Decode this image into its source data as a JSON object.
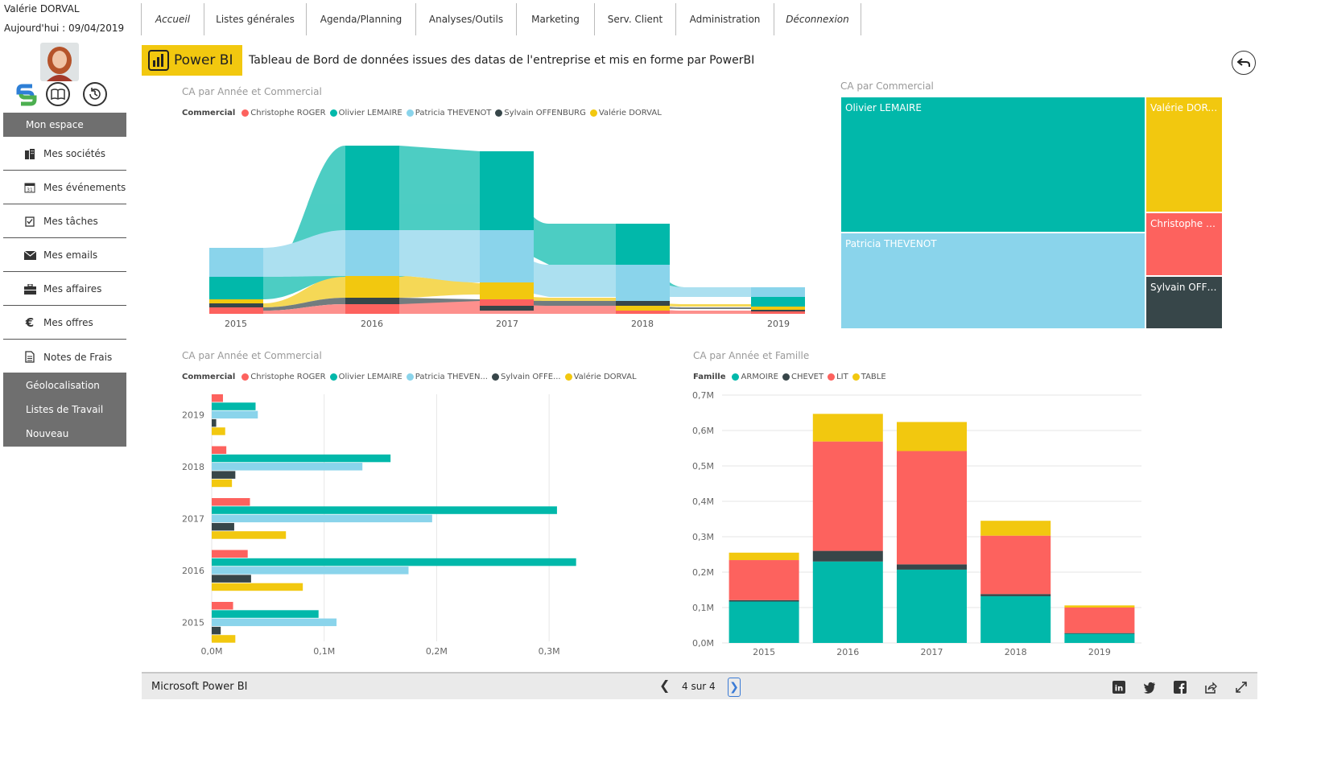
{
  "user": {
    "name": "Valérie DORVAL",
    "today": "Aujourd'hui : 09/04/2019"
  },
  "sidebar": {
    "header": "Mon espace",
    "items": [
      {
        "label": "Mes sociétés",
        "icon": "building-icon"
      },
      {
        "label": "Mes événements",
        "icon": "calendar-icon"
      },
      {
        "label": "Mes tâches",
        "icon": "task-icon"
      },
      {
        "label": "Mes emails",
        "icon": "envelope-icon"
      },
      {
        "label": "Mes affaires",
        "icon": "briefcase-icon"
      },
      {
        "label": "Mes offres",
        "icon": "euro-icon"
      },
      {
        "label": "Notes de Frais",
        "icon": "document-icon"
      }
    ],
    "gray_items": [
      "Géolocalisation",
      "Listes de Travail",
      "Nouveau"
    ]
  },
  "topmenu": [
    "Accueil",
    "Listes générales",
    "Agenda/Planning",
    "Analyses/Outils",
    "Marketing",
    "Serv. Client",
    "Administration",
    "Déconnexion"
  ],
  "header": {
    "badge": "Power BI",
    "title": "Tableau de Bord de données issues des datas de l'entreprise et mis en forme par PowerBI"
  },
  "colors": {
    "christophe": "#fd625e",
    "olivier": "#01b8aa",
    "patricia": "#8ad4eb",
    "sylvain": "#374649",
    "valerie": "#f2c80f",
    "brand": "#f2c80f"
  },
  "chart_data": [
    {
      "type": "area",
      "title": "CA par Année et Commercial",
      "legend_title": "Commercial",
      "legend": [
        "Christophe ROGER",
        "Olivier LEMAIRE",
        "Patricia THEVENOT",
        "Sylvain OFFENBURG",
        "Valérie DORVAL"
      ],
      "categories": [
        "2015",
        "2016",
        "2017",
        "2018",
        "2019"
      ]
    },
    {
      "type": "treemap",
      "title": "CA par Commercial",
      "cells": [
        "Olivier LEMAIRE",
        "Valérie DORV...",
        "Patricia THEVENOT",
        "Christophe R...",
        "Sylvain OFFE..."
      ]
    },
    {
      "type": "bar",
      "title": "CA par Année et Commercial",
      "legend_title": "Commercial",
      "legend": [
        "Christophe ROGER",
        "Olivier LEMAIRE",
        "Patricia THEVEN...",
        "Sylvain OFFE...",
        "Valérie DORVAL"
      ],
      "categories": [
        "2019",
        "2018",
        "2017",
        "2016",
        "2015"
      ],
      "xticks": [
        "0,0M",
        "0,1M",
        "0,2M",
        "0,3M"
      ],
      "xlim": [
        0,
        0.35
      ],
      "series": [
        {
          "name": "Christophe ROGER",
          "color": "#fd625e",
          "values": [
            0.01,
            0.013,
            0.034,
            0.032,
            0.019
          ]
        },
        {
          "name": "Olivier LEMAIRE",
          "color": "#01b8aa",
          "values": [
            0.039,
            0.159,
            0.307,
            0.324,
            0.095
          ]
        },
        {
          "name": "Patricia THEVENOT",
          "color": "#8ad4eb",
          "values": [
            0.041,
            0.134,
            0.196,
            0.175,
            0.111
          ]
        },
        {
          "name": "Sylvain OFFENBURG",
          "color": "#374649",
          "values": [
            0.004,
            0.021,
            0.02,
            0.035,
            0.008
          ]
        },
        {
          "name": "Valérie DORVAL",
          "color": "#f2c80f",
          "values": [
            0.012,
            0.018,
            0.066,
            0.081,
            0.021
          ]
        }
      ]
    },
    {
      "type": "bar",
      "stacked": true,
      "title": "CA par Année et Famille",
      "legend_title": "Famille",
      "legend": [
        "ARMOIRE",
        "CHEVET",
        "LIT",
        "TABLE"
      ],
      "categories": [
        "2015",
        "2016",
        "2017",
        "2018",
        "2019"
      ],
      "yticks": [
        "0,0M",
        "0,1M",
        "0,2M",
        "0,3M",
        "0,4M",
        "0,5M",
        "0,6M",
        "0,7M"
      ],
      "ylim": [
        0,
        0.7
      ],
      "series": [
        {
          "name": "ARMOIRE",
          "color": "#01b8aa",
          "values": [
            0.117,
            0.23,
            0.207,
            0.132,
            0.026
          ]
        },
        {
          "name": "CHEVET",
          "color": "#374649",
          "values": [
            0.004,
            0.03,
            0.015,
            0.006,
            0.002
          ]
        },
        {
          "name": "LIT",
          "color": "#fd625e",
          "values": [
            0.113,
            0.309,
            0.32,
            0.165,
            0.072
          ]
        },
        {
          "name": "TABLE",
          "color": "#f2c80f",
          "values": [
            0.021,
            0.078,
            0.082,
            0.042,
            0.006
          ]
        }
      ]
    }
  ],
  "footer": {
    "brand": "Microsoft Power BI",
    "page": "4 sur 4"
  }
}
